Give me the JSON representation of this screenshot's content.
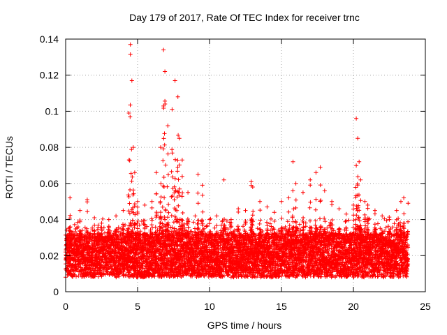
{
  "chart_data": {
    "type": "scatter",
    "title": "Day 179 of 2017, Rate Of TEC Index for receiver trnc",
    "xlabel": "GPS time / hours",
    "ylabel": "ROTI / TECUs",
    "xlim": [
      0,
      25
    ],
    "ylim": [
      0,
      0.14
    ],
    "xticks": [
      0,
      5,
      10,
      15,
      20,
      25
    ],
    "xtick_labels": [
      "0",
      "5",
      "10",
      "15",
      "20",
      "25"
    ],
    "yticks": [
      0,
      0.02,
      0.04,
      0.06,
      0.08,
      0.1,
      0.12,
      0.14
    ],
    "ytick_labels": [
      "0",
      "0.02",
      "0.04",
      "0.06",
      "0.08",
      "0.1",
      "0.12",
      "0.14"
    ],
    "grid": true,
    "marker": "+",
    "color": "#ff0000",
    "data_range_hours": [
      0,
      23.8
    ],
    "series": [
      {
        "name": "ROTI",
        "x": [
          0.0,
          0.3,
          0.5,
          1.0,
          1.5,
          2.0,
          2.5,
          3.0,
          3.5,
          4.0,
          4.4,
          4.5,
          4.6,
          4.7,
          4.8,
          5.0,
          5.5,
          6.0,
          6.3,
          6.6,
          6.8,
          6.9,
          7.1,
          7.4,
          7.6,
          7.8,
          7.9,
          8.1,
          8.5,
          9.0,
          9.2,
          9.5,
          10.0,
          10.5,
          11.0,
          11.5,
          12.0,
          12.5,
          12.9,
          13.0,
          13.5,
          14.0,
          14.5,
          15.0,
          15.5,
          15.8,
          16.0,
          16.5,
          17.0,
          17.4,
          17.7,
          18.0,
          18.5,
          19.0,
          19.5,
          20.0,
          20.2,
          20.3,
          20.4,
          20.5,
          20.8,
          21.0,
          21.5,
          22.0,
          22.5,
          23.0,
          23.3,
          23.5,
          23.8
        ],
        "y": [
          0.022,
          0.052,
          0.033,
          0.045,
          0.051,
          0.041,
          0.038,
          0.04,
          0.042,
          0.045,
          0.099,
          0.137,
          0.117,
          0.08,
          0.066,
          0.05,
          0.048,
          0.05,
          0.066,
          0.08,
          0.134,
          0.122,
          0.092,
          0.101,
          0.117,
          0.108,
          0.085,
          0.073,
          0.055,
          0.042,
          0.065,
          0.059,
          0.04,
          0.042,
          0.062,
          0.04,
          0.046,
          0.045,
          0.061,
          0.058,
          0.05,
          0.047,
          0.044,
          0.05,
          0.052,
          0.072,
          0.06,
          0.055,
          0.062,
          0.066,
          0.069,
          0.056,
          0.05,
          0.046,
          0.043,
          0.048,
          0.096,
          0.085,
          0.072,
          0.062,
          0.05,
          0.048,
          0.045,
          0.042,
          0.04,
          0.045,
          0.05,
          0.052,
          0.049
        ],
        "baseline_band": [
          0.008,
          0.032
        ]
      }
    ]
  }
}
